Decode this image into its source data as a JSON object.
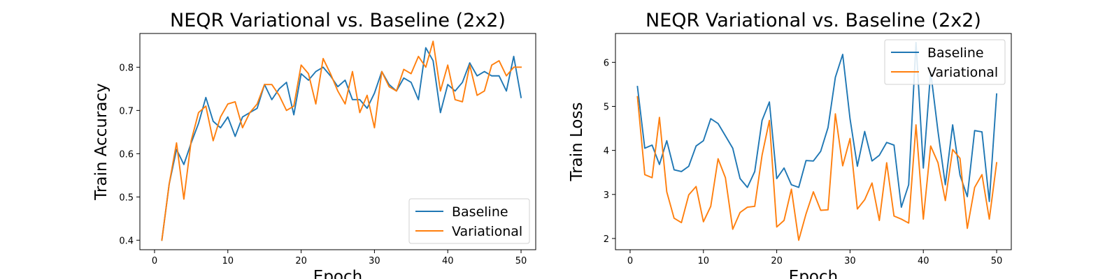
{
  "colors": {
    "baseline": "#1f77b4",
    "variational": "#ff7f0e"
  },
  "chart_data": [
    {
      "type": "line",
      "title": "NEQR Variational vs. Baseline (2x2)",
      "xlabel": "Epoch",
      "ylabel": "Train Accuracy",
      "xlim": [
        -2,
        52
      ],
      "ylim": [
        0.378,
        0.878
      ],
      "xticks": [
        0,
        10,
        20,
        30,
        40,
        50
      ],
      "yticks": [
        0.4,
        0.5,
        0.6,
        0.7,
        0.8
      ],
      "legend_position": "lower-right",
      "grid": false,
      "x": [
        1,
        2,
        3,
        4,
        5,
        6,
        7,
        8,
        9,
        10,
        11,
        12,
        13,
        14,
        15,
        16,
        17,
        18,
        19,
        20,
        21,
        22,
        23,
        24,
        25,
        26,
        27,
        28,
        29,
        30,
        31,
        32,
        33,
        34,
        35,
        36,
        37,
        38,
        39,
        40,
        41,
        42,
        43,
        44,
        45,
        46,
        47,
        48,
        49,
        50
      ],
      "series": [
        {
          "name": "Baseline",
          "color": "#1f77b4",
          "values": [
            0.4,
            0.53,
            0.61,
            0.575,
            0.625,
            0.67,
            0.73,
            0.675,
            0.66,
            0.685,
            0.64,
            0.685,
            0.695,
            0.705,
            0.76,
            0.725,
            0.75,
            0.765,
            0.69,
            0.785,
            0.77,
            0.79,
            0.8,
            0.78,
            0.755,
            0.77,
            0.725,
            0.725,
            0.705,
            0.74,
            0.79,
            0.76,
            0.745,
            0.775,
            0.765,
            0.725,
            0.845,
            0.815,
            0.695,
            0.76,
            0.745,
            0.765,
            0.81,
            0.78,
            0.79,
            0.78,
            0.78,
            0.745,
            0.825,
            0.73
          ]
        },
        {
          "name": "Variational",
          "color": "#ff7f0e",
          "values": [
            0.4,
            0.53,
            0.625,
            0.495,
            0.63,
            0.695,
            0.71,
            0.63,
            0.685,
            0.715,
            0.72,
            0.66,
            0.695,
            0.715,
            0.76,
            0.76,
            0.735,
            0.7,
            0.71,
            0.805,
            0.785,
            0.715,
            0.82,
            0.785,
            0.745,
            0.715,
            0.79,
            0.695,
            0.735,
            0.66,
            0.79,
            0.755,
            0.745,
            0.795,
            0.785,
            0.825,
            0.8,
            0.86,
            0.745,
            0.805,
            0.725,
            0.72,
            0.805,
            0.735,
            0.745,
            0.805,
            0.815,
            0.78,
            0.8,
            0.8
          ]
        }
      ]
    },
    {
      "type": "line",
      "title": "NEQR Variational vs. Baseline (2x2)",
      "xlabel": "Epoch",
      "ylabel": "Train Loss",
      "xlim": [
        -2,
        52
      ],
      "ylim": [
        1.745,
        6.655
      ],
      "xticks": [
        0,
        10,
        20,
        30,
        40,
        50
      ],
      "yticks": [
        2,
        3,
        4,
        5,
        6
      ],
      "legend_position": "upper-right",
      "grid": false,
      "x": [
        1,
        2,
        3,
        4,
        5,
        6,
        7,
        8,
        9,
        10,
        11,
        12,
        13,
        14,
        15,
        16,
        17,
        18,
        19,
        20,
        21,
        22,
        23,
        24,
        25,
        26,
        27,
        28,
        29,
        30,
        31,
        32,
        33,
        34,
        35,
        36,
        37,
        38,
        39,
        40,
        41,
        42,
        43,
        44,
        45,
        46,
        47,
        48,
        49,
        50
      ],
      "series": [
        {
          "name": "Baseline",
          "color": "#1f77b4",
          "values": [
            5.45,
            4.05,
            4.12,
            3.68,
            4.22,
            3.56,
            3.52,
            3.64,
            4.1,
            4.22,
            4.72,
            4.61,
            4.33,
            4.05,
            3.36,
            3.16,
            3.52,
            4.68,
            5.1,
            3.36,
            3.6,
            3.22,
            3.16,
            3.77,
            3.76,
            3.98,
            4.52,
            5.66,
            6.18,
            4.72,
            3.64,
            4.43,
            3.76,
            3.89,
            4.18,
            4.12,
            2.71,
            3.22,
            6.45,
            3.6,
            5.79,
            4.43,
            3.22,
            4.58,
            3.44,
            2.95,
            4.45,
            4.42,
            2.84,
            5.28
          ]
        },
        {
          "name": "Variational",
          "color": "#ff7f0e",
          "values": [
            5.22,
            3.45,
            3.38,
            4.75,
            3.06,
            2.46,
            2.36,
            2.99,
            3.18,
            2.38,
            2.73,
            3.81,
            3.38,
            2.21,
            2.59,
            2.71,
            2.73,
            3.89,
            4.68,
            2.26,
            2.41,
            3.12,
            1.96,
            2.56,
            3.06,
            2.64,
            2.65,
            4.83,
            3.65,
            4.27,
            2.67,
            2.88,
            3.26,
            2.41,
            3.72,
            2.51,
            2.44,
            2.35,
            4.58,
            2.44,
            4.1,
            3.72,
            2.86,
            4.02,
            3.82,
            2.23,
            3.16,
            3.45,
            2.44,
            3.72
          ]
        }
      ]
    }
  ]
}
